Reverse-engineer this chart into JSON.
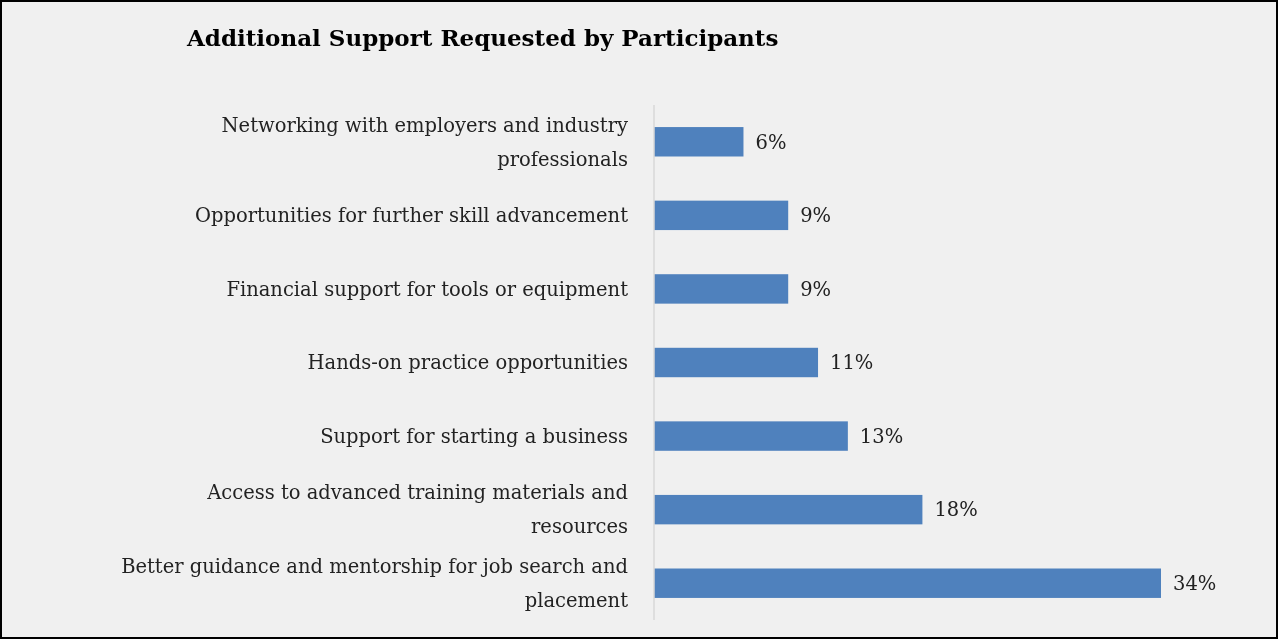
{
  "chart_data": {
    "type": "bar",
    "orientation": "horizontal",
    "title": "Additional Support Requested by Participants",
    "categories": [
      "Networking with employers and industry professionals",
      "Opportunities for further skill advancement",
      "Financial support for tools or equipment",
      "Hands-on practice opportunities",
      "Support for starting a business",
      "Access to advanced training materials and resources",
      "Better guidance and mentorship for job search and placement"
    ],
    "values": [
      6,
      9,
      9,
      11,
      13,
      18,
      34
    ],
    "value_labels": [
      "6%",
      "9%",
      "9%",
      "11%",
      "13%",
      "18%",
      "34%"
    ],
    "color": "#4f81bd"
  }
}
